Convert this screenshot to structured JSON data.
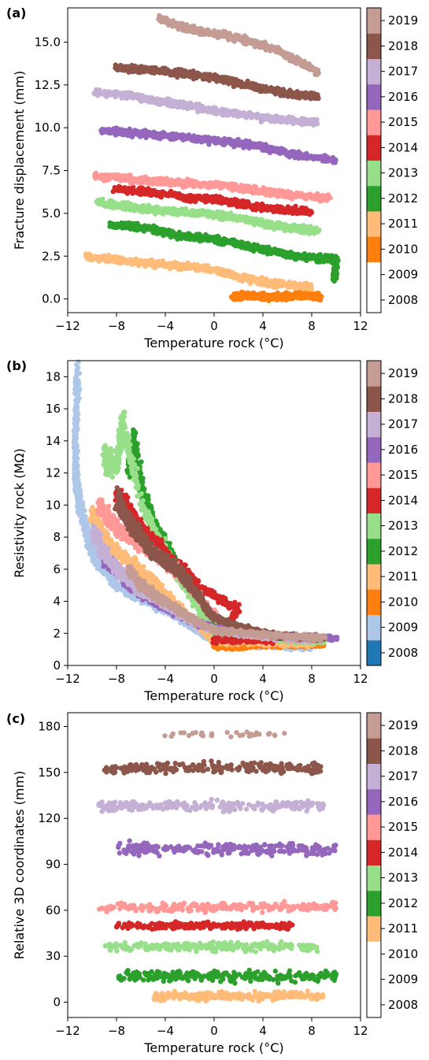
{
  "figure": {
    "panel_labels": [
      "(a)",
      "(b)",
      "(c)"
    ]
  },
  "colors": {
    "2008": "#ffffff",
    "2009": "#aec7e8",
    "2010": "#ff7f0e",
    "2011": "#ffbb78",
    "2012": "#2ca02c",
    "2013": "#98df8a",
    "2014": "#d62728",
    "2015": "#ff9896",
    "2016": "#9467bd",
    "2017": "#c5b0d5",
    "2018": "#8c564b",
    "2019": "#c49c94"
  },
  "chart_data": [
    {
      "panel": "(a)",
      "type": "scatter",
      "xlabel": "Temperature rock (°C)",
      "ylabel": "Fracture displacement (mm)",
      "xlim": [
        -12,
        12
      ],
      "ylim": [
        -0.8,
        17
      ],
      "xticks": [
        "−12",
        "−8",
        "−4",
        "0",
        "4",
        "8",
        "12"
      ],
      "yticks": [
        "0.0",
        "2.5",
        "5.0",
        "7.5",
        "10.0",
        "12.5",
        "15.0"
      ],
      "colorbar": {
        "years": [
          "2008",
          "2009",
          "2010",
          "2011",
          "2012",
          "2013",
          "2014",
          "2015",
          "2016",
          "2017",
          "2018",
          "2019"
        ],
        "colors": [
          "#ffffff",
          "#ffffff",
          "#ff7f0e",
          "#ffbb78",
          "#2ca02c",
          "#98df8a",
          "#d62728",
          "#ff9896",
          "#9467bd",
          "#c5b0d5",
          "#8c564b",
          "#c49c94"
        ]
      },
      "series": [
        {
          "year": "2010",
          "points": [
            [
              1.5,
              0.1
            ],
            [
              3,
              0.2
            ],
            [
              4.5,
              0.1
            ],
            [
              6,
              0.15
            ],
            [
              7.5,
              0.2
            ],
            [
              8.8,
              0.1
            ]
          ]
        },
        {
          "year": "2011",
          "points": [
            [
              -10.5,
              2.5
            ],
            [
              -8,
              2.3
            ],
            [
              -6,
              2.1
            ],
            [
              -4,
              2.0
            ],
            [
              -2,
              1.9
            ],
            [
              0,
              1.7
            ],
            [
              2,
              1.3
            ],
            [
              4,
              1.0
            ],
            [
              6,
              0.8
            ],
            [
              8,
              0.7
            ]
          ]
        },
        {
          "year": "2012",
          "points": [
            [
              -8.5,
              4.3
            ],
            [
              -6,
              4.2
            ],
            [
              -4,
              3.9
            ],
            [
              -2,
              3.6
            ],
            [
              0,
              3.5
            ],
            [
              2,
              3.2
            ],
            [
              4,
              2.9
            ],
            [
              6,
              2.6
            ],
            [
              8,
              2.4
            ],
            [
              10,
              2.3
            ],
            [
              9.8,
              1.1
            ]
          ]
        },
        {
          "year": "2013",
          "points": [
            [
              -9.5,
              5.6
            ],
            [
              -7,
              5.4
            ],
            [
              -5,
              5.2
            ],
            [
              -3,
              5.1
            ],
            [
              -1,
              5.0
            ],
            [
              1,
              4.8
            ],
            [
              3,
              4.6
            ],
            [
              5,
              4.3
            ],
            [
              7,
              4.1
            ],
            [
              8.5,
              4.0
            ]
          ]
        },
        {
          "year": "2014",
          "points": [
            [
              -8.2,
              6.4
            ],
            [
              -6,
              6.3
            ],
            [
              -4,
              6.1
            ],
            [
              -2,
              5.9
            ],
            [
              0,
              5.8
            ],
            [
              2,
              5.6
            ],
            [
              4,
              5.3
            ],
            [
              6,
              5.2
            ],
            [
              8,
              5.1
            ]
          ]
        },
        {
          "year": "2015",
          "points": [
            [
              -9.8,
              7.2
            ],
            [
              -7,
              7.0
            ],
            [
              -5,
              6.9
            ],
            [
              -3,
              6.8
            ],
            [
              -1,
              6.7
            ],
            [
              1,
              6.6
            ],
            [
              3,
              6.4
            ],
            [
              5,
              6.2
            ],
            [
              7,
              6.0
            ],
            [
              9.5,
              5.9
            ]
          ]
        },
        {
          "year": "2016",
          "points": [
            [
              -9.2,
              9.8
            ],
            [
              -7,
              9.7
            ],
            [
              -5,
              9.6
            ],
            [
              -3,
              9.5
            ],
            [
              -1,
              9.3
            ],
            [
              1,
              9.2
            ],
            [
              3,
              9.0
            ],
            [
              5,
              8.7
            ],
            [
              7,
              8.4
            ],
            [
              10,
              8.1
            ]
          ]
        },
        {
          "year": "2017",
          "points": [
            [
              -9.8,
              12.1
            ],
            [
              -7,
              11.9
            ],
            [
              -5,
              11.6
            ],
            [
              -3,
              11.4
            ],
            [
              -1,
              11.1
            ],
            [
              1,
              10.9
            ],
            [
              3,
              10.7
            ],
            [
              5,
              10.5
            ],
            [
              7,
              10.4
            ],
            [
              8.5,
              10.3
            ]
          ]
        },
        {
          "year": "2018",
          "points": [
            [
              -8,
              13.5
            ],
            [
              -6,
              13.4
            ],
            [
              -4,
              13.3
            ],
            [
              -2,
              13.1
            ],
            [
              0,
              12.9
            ],
            [
              2,
              12.6
            ],
            [
              4,
              12.3
            ],
            [
              6,
              12.0
            ],
            [
              8.5,
              11.8
            ]
          ]
        },
        {
          "year": "2019",
          "points": [
            [
              -4.5,
              16.4
            ],
            [
              -3,
              16.0
            ],
            [
              -1,
              15.6
            ],
            [
              1,
              15.4
            ],
            [
              3,
              15.0
            ],
            [
              5,
              14.6
            ],
            [
              6.5,
              14.0
            ],
            [
              8.5,
              13.3
            ]
          ]
        }
      ]
    },
    {
      "panel": "(b)",
      "type": "scatter",
      "xlabel": "Temperature rock (°C)",
      "ylabel": "Resistivity rock (MΩ)",
      "xlim": [
        -12,
        12
      ],
      "ylim": [
        0,
        19
      ],
      "xticks": [
        "−12",
        "−8",
        "−4",
        "0",
        "4",
        "8",
        "12"
      ],
      "yticks": [
        "0",
        "2",
        "4",
        "6",
        "8",
        "10",
        "12",
        "14",
        "16",
        "18"
      ],
      "colorbar": {
        "years": [
          "2008",
          "2009",
          "2010",
          "2011",
          "2012",
          "2013",
          "2014",
          "2015",
          "2016",
          "2017",
          "2018",
          "2019"
        ],
        "colors": [
          "#1f77b4",
          "#aec7e8",
          "#ff7f0e",
          "#ffbb78",
          "#2ca02c",
          "#98df8a",
          "#d62728",
          "#ff9896",
          "#9467bd",
          "#c5b0d5",
          "#8c564b",
          "#c49c94"
        ]
      },
      "series": [
        {
          "year": "2009",
          "points": [
            [
              -11.2,
              18.2
            ],
            [
              -11.3,
              15.8
            ],
            [
              -11.4,
              12.5
            ],
            [
              -11.2,
              11
            ],
            [
              -11,
              10
            ],
            [
              -10.5,
              8.5
            ],
            [
              -10,
              7
            ],
            [
              -9,
              6
            ],
            [
              -8,
              5
            ],
            [
              -6,
              4.2
            ],
            [
              -4,
              3.5
            ],
            [
              -2,
              2.5
            ],
            [
              0,
              1.5
            ],
            [
              4,
              1.2
            ],
            [
              8,
              1.1
            ]
          ]
        },
        {
          "year": "2010",
          "points": [
            [
              0,
              1.2
            ],
            [
              2,
              1.2
            ],
            [
              4,
              1.3
            ],
            [
              6,
              1.3
            ],
            [
              9,
              1.3
            ]
          ]
        },
        {
          "year": "2011",
          "points": [
            [
              -10,
              9.5
            ],
            [
              -9,
              8
            ],
            [
              -8,
              7
            ],
            [
              -6,
              6
            ],
            [
              -4,
              4.5
            ],
            [
              -2,
              3
            ],
            [
              0,
              1.5
            ],
            [
              4,
              1.4
            ],
            [
              8,
              1.3
            ]
          ]
        },
        {
          "year": "2012",
          "points": [
            [
              -7,
              12.5
            ],
            [
              -6.5,
              14
            ],
            [
              -6,
              11
            ],
            [
              -5,
              9
            ],
            [
              -4,
              7.5
            ],
            [
              -2,
              5
            ],
            [
              0,
              2.5
            ],
            [
              2,
              2
            ],
            [
              5,
              1.8
            ],
            [
              8,
              1.6
            ]
          ]
        },
        {
          "year": "2013",
          "points": [
            [
              -9,
              13
            ],
            [
              -8,
              12.5
            ],
            [
              -7.5,
              15.2
            ],
            [
              -6,
              10
            ],
            [
              -4,
              7
            ],
            [
              -2,
              4.5
            ],
            [
              0,
              2
            ],
            [
              3,
              1.8
            ],
            [
              6,
              1.6
            ],
            [
              9,
              1.5
            ]
          ]
        },
        {
          "year": "2014",
          "points": [
            [
              -8,
              10.5
            ],
            [
              -7,
              9.8
            ],
            [
              -6,
              8.5
            ],
            [
              -4,
              7
            ],
            [
              -1,
              4.8
            ],
            [
              2,
              3.5
            ],
            [
              0,
              1.6
            ],
            [
              5,
              1.5
            ]
          ]
        },
        {
          "year": "2015",
          "points": [
            [
              -9.5,
              10
            ],
            [
              -8.5,
              9
            ],
            [
              -7,
              8
            ],
            [
              -5,
              7
            ],
            [
              -3,
              5.8
            ],
            [
              -1,
              4
            ],
            [
              1,
              2.2
            ],
            [
              4,
              1.8
            ],
            [
              8,
              1.6
            ]
          ]
        },
        {
          "year": "2016",
          "points": [
            [
              -9,
              6.5
            ],
            [
              -8,
              6
            ],
            [
              -7,
              5
            ],
            [
              -5,
              4
            ],
            [
              -3,
              3.2
            ],
            [
              -1,
              2.5
            ],
            [
              2,
              2.1
            ],
            [
              6,
              1.8
            ],
            [
              10,
              1.7
            ]
          ]
        },
        {
          "year": "2017",
          "points": [
            [
              -10,
              8.5
            ],
            [
              -9,
              7
            ],
            [
              -8,
              6
            ],
            [
              -6,
              4.6
            ],
            [
              -4,
              3.8
            ],
            [
              -2,
              2.8
            ],
            [
              0,
              2.2
            ],
            [
              4,
              1.8
            ],
            [
              8,
              1.6
            ]
          ]
        },
        {
          "year": "2018",
          "points": [
            [
              -8,
              10.5
            ],
            [
              -7,
              9
            ],
            [
              -6,
              8
            ],
            [
              -5,
              7
            ],
            [
              -4,
              6.5
            ],
            [
              -3,
              6
            ],
            [
              -2,
              5
            ],
            [
              -1,
              4
            ],
            [
              0,
              3
            ],
            [
              2,
              2.4
            ],
            [
              4,
              2
            ],
            [
              6,
              1.8
            ],
            [
              9,
              1.7
            ]
          ]
        },
        {
          "year": "2019",
          "points": [
            [
              -7,
              6
            ],
            [
              -6,
              5
            ],
            [
              -5,
              4.5
            ],
            [
              -4,
              4
            ],
            [
              -3,
              3.5
            ],
            [
              -2,
              3
            ],
            [
              0,
              2.2
            ],
            [
              3,
              2
            ],
            [
              6,
              1.8
            ],
            [
              9,
              1.7
            ]
          ]
        }
      ]
    },
    {
      "panel": "(c)",
      "type": "scatter",
      "xlabel": "Temperature rock (°C)",
      "ylabel": "Relative 3D coordinates (mm)",
      "xlim": [
        -12,
        12
      ],
      "ylim": [
        -10,
        189
      ],
      "xticks": [
        "−12",
        "−8",
        "−4",
        "0",
        "4",
        "8",
        "12"
      ],
      "yticks": [
        "0",
        "30",
        "60",
        "90",
        "120",
        "150",
        "180"
      ],
      "colorbar": {
        "years": [
          "2008",
          "2009",
          "2010",
          "2011",
          "2012",
          "2013",
          "2014",
          "2015",
          "2016",
          "2017",
          "2018",
          "2019"
        ],
        "colors": [
          "#ffffff",
          "#ffffff",
          "#ffffff",
          "#ffbb78",
          "#2ca02c",
          "#98df8a",
          "#d62728",
          "#ff9896",
          "#9467bd",
          "#c5b0d5",
          "#8c564b",
          "#c49c94"
        ]
      },
      "series": [
        {
          "year": "2011",
          "center": 4,
          "spread": 4,
          "xrange": [
            -5,
            9
          ]
        },
        {
          "year": "2012",
          "center": 17,
          "spread": 5,
          "xrange": [
            -8,
            10
          ]
        },
        {
          "year": "2013",
          "center": 36,
          "spread": 4,
          "xrange": [
            -9,
            8.5
          ]
        },
        {
          "year": "2014",
          "center": 50,
          "spread": 3,
          "xrange": [
            -8,
            6.5
          ]
        },
        {
          "year": "2015",
          "center": 62,
          "spread": 4,
          "xrange": [
            -9.5,
            10
          ]
        },
        {
          "year": "2016",
          "center": 100,
          "spread": 6,
          "xrange": [
            -8,
            10
          ]
        },
        {
          "year": "2017",
          "center": 128,
          "spread": 5,
          "xrange": [
            -9.5,
            9
          ]
        },
        {
          "year": "2018",
          "center": 153,
          "spread": 5,
          "xrange": [
            -9,
            9
          ]
        },
        {
          "year": "2019",
          "center": 175,
          "spread": 3,
          "xrange": [
            -4.5,
            6
          ]
        }
      ]
    }
  ]
}
